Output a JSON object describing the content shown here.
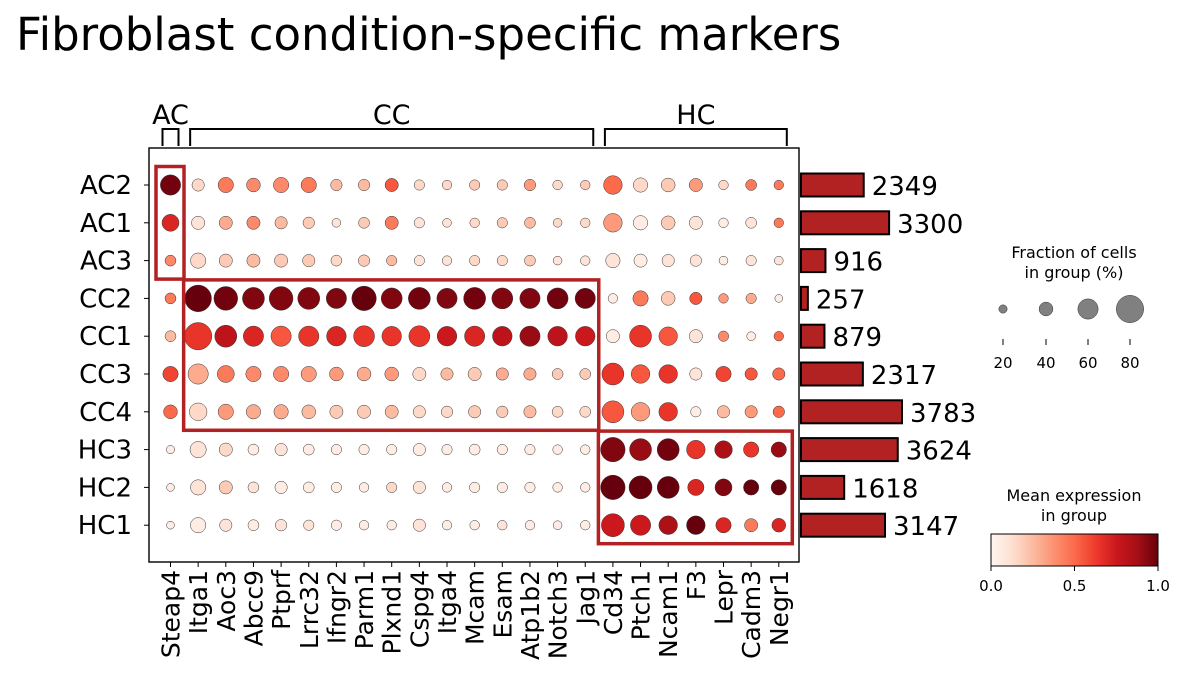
{
  "chart_data": {
    "type": "dotplot",
    "title": "Fibroblast condition-specific markers",
    "genes": [
      "Steap4",
      "Itga1",
      "Aoc3",
      "Abcc9",
      "Ptprf",
      "Lrrc32",
      "Ifngr2",
      "Parm1",
      "Plxnd1",
      "Cspg4",
      "Itga4",
      "Mcam",
      "Esam",
      "Atp1b2",
      "Notch3",
      "Jag1",
      "Cd34",
      "Ptch1",
      "Ncam1",
      "F3",
      "Lepr",
      "Cadm3",
      "Negr1"
    ],
    "gene_groups": [
      {
        "label": "AC",
        "genes": [
          "Steap4"
        ]
      },
      {
        "label": "CC",
        "genes": [
          "Itga1",
          "Aoc3",
          "Abcc9",
          "Ptprf",
          "Lrrc32",
          "Ifngr2",
          "Parm1",
          "Plxnd1",
          "Cspg4",
          "Itga4",
          "Mcam",
          "Esam",
          "Atp1b2",
          "Notch3",
          "Jag1"
        ]
      },
      {
        "label": "HC",
        "genes": [
          "Cd34",
          "Ptch1",
          "Ncam1",
          "F3",
          "Lepr",
          "Cadm3",
          "Negr1"
        ]
      }
    ],
    "groups": [
      "AC2",
      "AC1",
      "AC3",
      "CC2",
      "CC1",
      "CC3",
      "CC4",
      "HC3",
      "HC2",
      "HC1"
    ],
    "cell_counts": [
      2349,
      3300,
      916,
      257,
      879,
      2317,
      3783,
      3624,
      1618,
      3147
    ],
    "cell_counts_label": [
      "2349",
      "3300",
      "916",
      "257",
      "879",
      "2317",
      "3783",
      "3624",
      "1618",
      "3147"
    ],
    "fraction_pct": [
      [
        60,
        35,
        45,
        40,
        45,
        45,
        32,
        32,
        38,
        28,
        25,
        28,
        28,
        32,
        25,
        25,
        55,
        42,
        40,
        38,
        25,
        30,
        25
      ],
      [
        50,
        38,
        38,
        38,
        35,
        32,
        22,
        30,
        38,
        28,
        22,
        25,
        28,
        30,
        22,
        25,
        55,
        42,
        40,
        38,
        25,
        30,
        25
      ],
      [
        30,
        45,
        38,
        38,
        38,
        35,
        30,
        32,
        28,
        28,
        25,
        28,
        28,
        30,
        22,
        25,
        42,
        38,
        35,
        32,
        22,
        28,
        22
      ],
      [
        30,
        78,
        70,
        65,
        70,
        65,
        60,
        72,
        62,
        65,
        60,
        65,
        62,
        60,
        62,
        60,
        25,
        45,
        40,
        35,
        25,
        28,
        18
      ],
      [
        30,
        80,
        65,
        60,
        60,
        60,
        58,
        62,
        58,
        62,
        58,
        60,
        58,
        60,
        58,
        58,
        38,
        65,
        55,
        38,
        28,
        22,
        25
      ],
      [
        45,
        60,
        50,
        45,
        45,
        45,
        40,
        40,
        40,
        38,
        35,
        38,
        35,
        35,
        30,
        30,
        65,
        55,
        55,
        35,
        45,
        35,
        35
      ],
      [
        40,
        52,
        45,
        42,
        42,
        40,
        38,
        38,
        38,
        35,
        32,
        35,
        32,
        35,
        30,
        30,
        65,
        55,
        55,
        28,
        35,
        35,
        32
      ],
      [
        20,
        48,
        38,
        30,
        35,
        30,
        28,
        28,
        28,
        35,
        28,
        30,
        28,
        28,
        25,
        25,
        72,
        65,
        65,
        55,
        52,
        45,
        45
      ],
      [
        18,
        45,
        38,
        30,
        35,
        30,
        28,
        25,
        28,
        35,
        25,
        28,
        28,
        28,
        25,
        25,
        72,
        68,
        65,
        48,
        50,
        45,
        45
      ],
      [
        18,
        45,
        35,
        30,
        32,
        28,
        28,
        25,
        25,
        35,
        25,
        25,
        25,
        25,
        22,
        25,
        68,
        60,
        55,
        55,
        45,
        38,
        40
      ]
    ],
    "mean_expression": [
      [
        0.98,
        0.15,
        0.45,
        0.4,
        0.4,
        0.45,
        0.25,
        0.25,
        0.55,
        0.15,
        0.15,
        0.2,
        0.2,
        0.35,
        0.15,
        0.2,
        0.5,
        0.15,
        0.2,
        0.35,
        0.15,
        0.45,
        0.45
      ],
      [
        0.7,
        0.1,
        0.3,
        0.4,
        0.25,
        0.2,
        0.1,
        0.2,
        0.45,
        0.1,
        0.1,
        0.15,
        0.2,
        0.25,
        0.15,
        0.15,
        0.35,
        0.05,
        0.2,
        0.1,
        0.05,
        0.1,
        0.45
      ],
      [
        0.4,
        0.15,
        0.2,
        0.25,
        0.2,
        0.2,
        0.15,
        0.2,
        0.25,
        0.1,
        0.1,
        0.15,
        0.15,
        0.2,
        0.1,
        0.1,
        0.1,
        0.05,
        0.1,
        0.1,
        0.05,
        0.1,
        0.1
      ],
      [
        0.45,
        1.0,
        0.98,
        0.95,
        0.95,
        0.95,
        0.95,
        1.0,
        0.95,
        0.98,
        0.95,
        0.98,
        0.95,
        0.95,
        0.98,
        0.98,
        0.05,
        0.45,
        0.2,
        0.55,
        0.35,
        0.3,
        0.05
      ],
      [
        0.25,
        0.65,
        0.8,
        0.7,
        0.55,
        0.65,
        0.7,
        0.65,
        0.65,
        0.65,
        0.75,
        0.7,
        0.8,
        0.9,
        0.8,
        0.75,
        0.05,
        0.65,
        0.55,
        0.1,
        0.4,
        0.05,
        0.5
      ],
      [
        0.6,
        0.3,
        0.45,
        0.4,
        0.4,
        0.35,
        0.35,
        0.3,
        0.35,
        0.15,
        0.25,
        0.2,
        0.3,
        0.3,
        0.2,
        0.2,
        0.65,
        0.55,
        0.65,
        0.1,
        0.6,
        0.55,
        0.5
      ],
      [
        0.5,
        0.15,
        0.35,
        0.3,
        0.3,
        0.25,
        0.2,
        0.2,
        0.25,
        0.15,
        0.15,
        0.2,
        0.2,
        0.25,
        0.15,
        0.15,
        0.55,
        0.35,
        0.65,
        0.05,
        0.25,
        0.35,
        0.5
      ],
      [
        0.05,
        0.1,
        0.15,
        0.05,
        0.1,
        0.05,
        0.05,
        0.05,
        0.05,
        0.05,
        0.05,
        0.05,
        0.05,
        0.05,
        0.05,
        0.05,
        0.95,
        0.9,
        0.98,
        0.65,
        0.85,
        0.65,
        0.9
      ],
      [
        0.05,
        0.1,
        0.2,
        0.1,
        0.05,
        0.05,
        0.05,
        0.05,
        0.15,
        0.1,
        0.05,
        0.05,
        0.05,
        0.05,
        0.05,
        0.05,
        1.0,
        1.0,
        1.0,
        0.7,
        0.95,
        1.0,
        1.0
      ],
      [
        0.05,
        0.05,
        0.1,
        0.05,
        0.1,
        0.1,
        0.05,
        0.05,
        0.05,
        0.1,
        0.05,
        0.05,
        0.1,
        0.05,
        0.05,
        0.05,
        0.75,
        0.75,
        0.85,
        1.0,
        0.7,
        0.45,
        0.7
      ]
    ],
    "highlight_boxes": [
      {
        "group": "AC",
        "rows": [
          "AC2",
          "AC1",
          "AC3"
        ],
        "genes": [
          "Steap4"
        ]
      },
      {
        "group": "CC",
        "rows": [
          "CC2",
          "CC1",
          "CC3",
          "CC4"
        ],
        "genes": [
          "Itga1",
          "Jag1"
        ]
      },
      {
        "group": "HC",
        "rows": [
          "HC3",
          "HC2",
          "HC1"
        ],
        "genes": [
          "Cd34",
          "Negr1"
        ]
      }
    ],
    "size_legend": {
      "title_line1": "Fraction of cells",
      "title_line2": "in group (%)",
      "values": [
        20,
        40,
        60,
        80
      ],
      "labels": [
        "20",
        "40",
        "60",
        "80"
      ]
    },
    "color_legend": {
      "title_line1": "Mean expression",
      "title_line2": "in group",
      "range": [
        0,
        1
      ],
      "ticks": [
        "0.0",
        "0.5",
        "1.0"
      ],
      "colormap": "Reds"
    },
    "colors": {
      "bar_fill": "#b22222",
      "highlight_box": "#b22222",
      "size_legend_dot": "#808080"
    }
  }
}
